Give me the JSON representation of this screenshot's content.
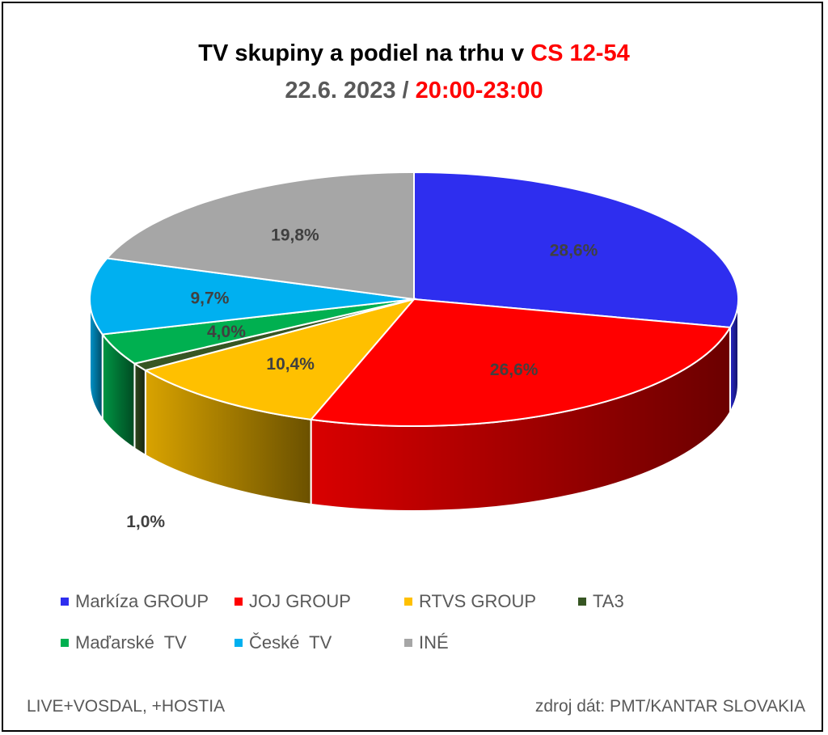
{
  "header": {
    "title_prefix": "TV skupiny a podiel na trhu v ",
    "title_highlight": "CS 12-54",
    "date": "22.6. 2023",
    "separator": " / ",
    "time": "20:00-23:00"
  },
  "footer": {
    "left": "LIVE+VOSDAL, +HOSTIA",
    "right": "zdroj dát: PMT/KANTAR SLOVAKIA"
  },
  "colors": {
    "accent_red": "#ff0000",
    "title_gray": "#595959"
  },
  "chart_data": {
    "type": "pie",
    "style": "3d",
    "title": "TV skupiny a podiel na trhu v CS 12-54",
    "subtitle": "22.6. 2023 / 20:00-23:00",
    "legend_position": "bottom",
    "slices": [
      {
        "name": "Markíza GROUP",
        "value": 28.6,
        "label": "28,6%",
        "color": "#2e2eef"
      },
      {
        "name": "JOJ GROUP",
        "value": 26.6,
        "label": "26,6%",
        "color": "#ff0000"
      },
      {
        "name": "RTVS GROUP",
        "value": 10.4,
        "label": "10,4%",
        "color": "#ffc000"
      },
      {
        "name": "TA3",
        "value": 1.0,
        "label": "1,0%",
        "color": "#375623"
      },
      {
        "name": "Maďarské  TV",
        "value": 4.0,
        "label": "4,0%",
        "color": "#00b050"
      },
      {
        "name": "České  TV",
        "value": 9.7,
        "label": "9,7%",
        "color": "#00b0f0"
      },
      {
        "name": "INÉ",
        "value": 19.8,
        "label": "19,8%",
        "color": "#a6a6a6"
      }
    ]
  }
}
